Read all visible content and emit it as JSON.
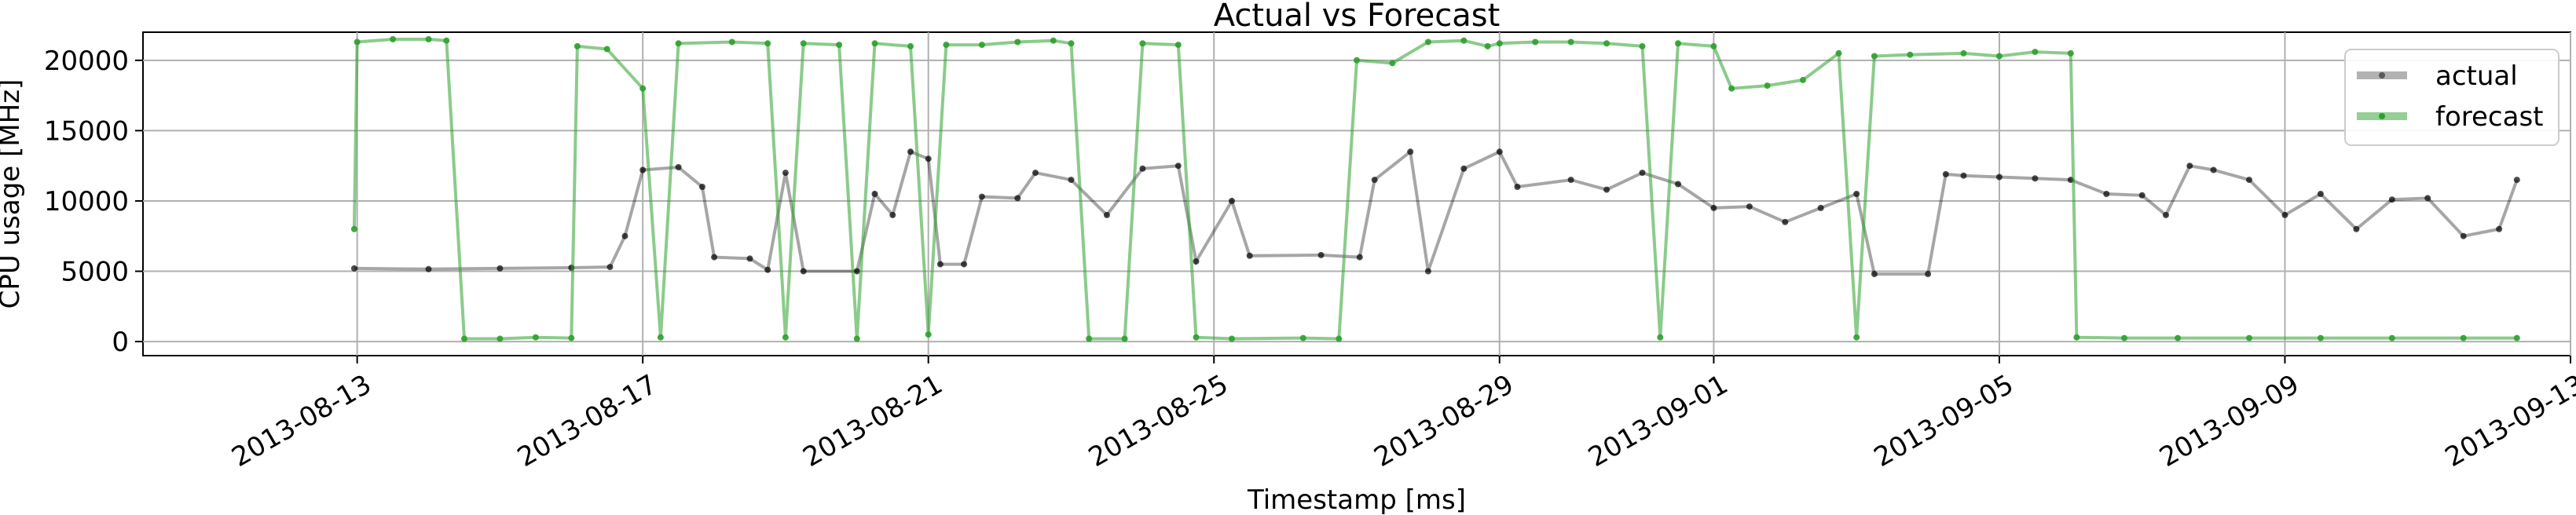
{
  "chart_data": {
    "type": "line",
    "title": "Actual vs Forecast",
    "xlabel": "Timestamp [ms]",
    "ylabel": "CPU usage [MHz]",
    "ylim": [
      -1000,
      22000
    ],
    "xlim": [
      "2013-08-10",
      "2013-09-13"
    ],
    "x_ticks": [
      "2013-08-13",
      "2013-08-17",
      "2013-08-21",
      "2013-08-25",
      "2013-08-29",
      "2013-09-01",
      "2013-09-05",
      "2013-09-09",
      "2013-09-13"
    ],
    "y_ticks": [
      0,
      5000,
      10000,
      15000,
      20000
    ],
    "grid": true,
    "legend_position": "top-right",
    "colors": {
      "actual": "#000000",
      "forecast": "#2ca02c"
    },
    "series": [
      {
        "name": "actual",
        "color": "#000000",
        "points": [
          [
            "2013-08-12T23:00",
            5200
          ],
          [
            "2013-08-14T00:00",
            5150
          ],
          [
            "2013-08-15T00:00",
            5200
          ],
          [
            "2013-08-16T00:00",
            5250
          ],
          [
            "2013-08-16T13:00",
            5300
          ],
          [
            "2013-08-16T18:00",
            7500
          ],
          [
            "2013-08-17T00:00",
            12200
          ],
          [
            "2013-08-17T12:00",
            12400
          ],
          [
            "2013-08-17T20:00",
            11000
          ],
          [
            "2013-08-18T00:00",
            6000
          ],
          [
            "2013-08-18T12:00",
            5900
          ],
          [
            "2013-08-18T18:00",
            5100
          ],
          [
            "2013-08-19T00:00",
            12000
          ],
          [
            "2013-08-19T06:00",
            5000
          ],
          [
            "2013-08-20T00:00",
            5000
          ],
          [
            "2013-08-20T06:00",
            10500
          ],
          [
            "2013-08-20T12:00",
            9000
          ],
          [
            "2013-08-20T18:00",
            13500
          ],
          [
            "2013-08-21T00:00",
            13000
          ],
          [
            "2013-08-21T04:00",
            5500
          ],
          [
            "2013-08-21T12:00",
            5500
          ],
          [
            "2013-08-21T18:00",
            10300
          ],
          [
            "2013-08-22T06:00",
            10200
          ],
          [
            "2013-08-22T12:00",
            12000
          ],
          [
            "2013-08-23T00:00",
            11500
          ],
          [
            "2013-08-23T12:00",
            9000
          ],
          [
            "2013-08-24T00:00",
            12300
          ],
          [
            "2013-08-24T12:00",
            12500
          ],
          [
            "2013-08-24T18:00",
            5700
          ],
          [
            "2013-08-25T06:00",
            10000
          ],
          [
            "2013-08-25T12:00",
            6100
          ],
          [
            "2013-08-26T12:00",
            6150
          ],
          [
            "2013-08-27T01:00",
            6000
          ],
          [
            "2013-08-27T06:00",
            11500
          ],
          [
            "2013-08-27T18:00",
            13500
          ],
          [
            "2013-08-28T00:00",
            5000
          ],
          [
            "2013-08-28T12:00",
            12300
          ],
          [
            "2013-08-29T00:00",
            13500
          ],
          [
            "2013-08-29T06:00",
            11000
          ],
          [
            "2013-08-30T00:00",
            11500
          ],
          [
            "2013-08-30T12:00",
            10800
          ],
          [
            "2013-08-31T00:00",
            12000
          ],
          [
            "2013-08-31T12:00",
            11200
          ],
          [
            "2013-09-01T00:00",
            9500
          ],
          [
            "2013-09-01T12:00",
            9600
          ],
          [
            "2013-09-02T00:00",
            8500
          ],
          [
            "2013-09-02T12:00",
            9500
          ],
          [
            "2013-09-03T00:00",
            10500
          ],
          [
            "2013-09-03T06:00",
            4800
          ],
          [
            "2013-09-04T00:00",
            4800
          ],
          [
            "2013-09-04T06:00",
            11900
          ],
          [
            "2013-09-04T12:00",
            11800
          ],
          [
            "2013-09-05T00:00",
            11700
          ],
          [
            "2013-09-05T12:00",
            11600
          ],
          [
            "2013-09-06T00:00",
            11500
          ],
          [
            "2013-09-06T12:00",
            10500
          ],
          [
            "2013-09-07T00:00",
            10400
          ],
          [
            "2013-09-07T08:00",
            9000
          ],
          [
            "2013-09-07T16:00",
            12500
          ],
          [
            "2013-09-08T00:00",
            12200
          ],
          [
            "2013-09-08T12:00",
            11500
          ],
          [
            "2013-09-09T00:00",
            9000
          ],
          [
            "2013-09-09T12:00",
            10500
          ],
          [
            "2013-09-10T00:00",
            8000
          ],
          [
            "2013-09-10T12:00",
            10100
          ],
          [
            "2013-09-11T00:00",
            10200
          ],
          [
            "2013-09-11T12:00",
            7500
          ],
          [
            "2013-09-12T00:00",
            8000
          ],
          [
            "2013-09-12T06:00",
            11500
          ]
        ]
      },
      {
        "name": "forecast",
        "color": "#2ca02c",
        "points": [
          [
            "2013-08-12T23:00",
            8000
          ],
          [
            "2013-08-13T00:00",
            21300
          ],
          [
            "2013-08-13T12:00",
            21500
          ],
          [
            "2013-08-14T00:00",
            21500
          ],
          [
            "2013-08-14T06:00",
            21400
          ],
          [
            "2013-08-14T12:00",
            200
          ],
          [
            "2013-08-15T00:00",
            200
          ],
          [
            "2013-08-15T12:00",
            300
          ],
          [
            "2013-08-16T00:00",
            250
          ],
          [
            "2013-08-16T02:00",
            21000
          ],
          [
            "2013-08-16T12:00",
            20800
          ],
          [
            "2013-08-17T00:00",
            18000
          ],
          [
            "2013-08-17T06:00",
            300
          ],
          [
            "2013-08-17T12:00",
            21200
          ],
          [
            "2013-08-18T06:00",
            21300
          ],
          [
            "2013-08-18T18:00",
            21200
          ],
          [
            "2013-08-19T00:00",
            300
          ],
          [
            "2013-08-19T06:00",
            21200
          ],
          [
            "2013-08-19T18:00",
            21100
          ],
          [
            "2013-08-20T00:00",
            200
          ],
          [
            "2013-08-20T06:00",
            21200
          ],
          [
            "2013-08-20T18:00",
            21000
          ],
          [
            "2013-08-21T00:00",
            500
          ],
          [
            "2013-08-21T06:00",
            21100
          ],
          [
            "2013-08-21T18:00",
            21100
          ],
          [
            "2013-08-22T06:00",
            21300
          ],
          [
            "2013-08-22T18:00",
            21400
          ],
          [
            "2013-08-23T00:00",
            21200
          ],
          [
            "2013-08-23T06:00",
            200
          ],
          [
            "2013-08-23T18:00",
            200
          ],
          [
            "2013-08-24T00:00",
            21200
          ],
          [
            "2013-08-24T12:00",
            21100
          ],
          [
            "2013-08-24T18:00",
            300
          ],
          [
            "2013-08-25T06:00",
            200
          ],
          [
            "2013-08-26T06:00",
            250
          ],
          [
            "2013-08-26T18:00",
            200
          ],
          [
            "2013-08-27T00:00",
            20000
          ],
          [
            "2013-08-27T12:00",
            19800
          ],
          [
            "2013-08-28T00:00",
            21300
          ],
          [
            "2013-08-28T12:00",
            21400
          ],
          [
            "2013-08-28T20:00",
            21000
          ],
          [
            "2013-08-29T00:00",
            21200
          ],
          [
            "2013-08-29T12:00",
            21300
          ],
          [
            "2013-08-30T00:00",
            21300
          ],
          [
            "2013-08-30T12:00",
            21200
          ],
          [
            "2013-08-31T00:00",
            21000
          ],
          [
            "2013-08-31T06:00",
            300
          ],
          [
            "2013-08-31T12:00",
            21200
          ],
          [
            "2013-09-01T00:00",
            21000
          ],
          [
            "2013-09-01T06:00",
            18000
          ],
          [
            "2013-09-01T18:00",
            18200
          ],
          [
            "2013-09-02T06:00",
            18600
          ],
          [
            "2013-09-02T18:00",
            20500
          ],
          [
            "2013-09-03T00:00",
            300
          ],
          [
            "2013-09-03T06:00",
            20300
          ],
          [
            "2013-09-03T18:00",
            20400
          ],
          [
            "2013-09-04T12:00",
            20500
          ],
          [
            "2013-09-05T00:00",
            20300
          ],
          [
            "2013-09-05T12:00",
            20600
          ],
          [
            "2013-09-06T00:00",
            20500
          ],
          [
            "2013-09-06T02:00",
            300
          ],
          [
            "2013-09-06T18:00",
            250
          ],
          [
            "2013-09-07T12:00",
            250
          ],
          [
            "2013-09-08T12:00",
            250
          ],
          [
            "2013-09-09T12:00",
            250
          ],
          [
            "2013-09-10T12:00",
            250
          ],
          [
            "2013-09-11T12:00",
            250
          ],
          [
            "2013-09-12T06:00",
            250
          ]
        ]
      }
    ]
  }
}
